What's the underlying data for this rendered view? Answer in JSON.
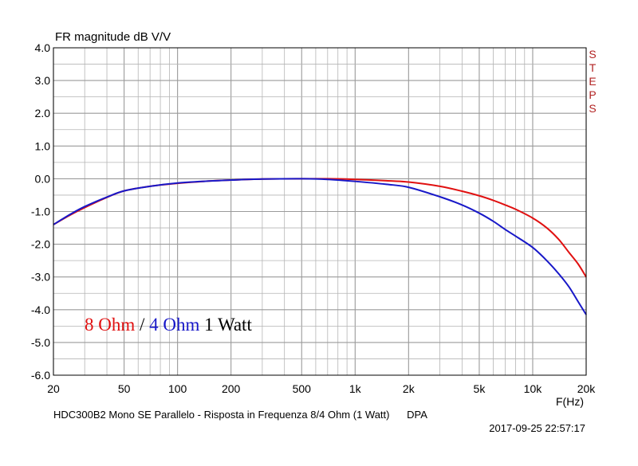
{
  "chart_data": {
    "type": "line",
    "title": "FR magnitude dB V/V",
    "xlabel": "F(Hz)",
    "ylabel": "",
    "xscale": "log",
    "xlim": [
      20,
      20000
    ],
    "ylim": [
      -6,
      4
    ],
    "grid": true,
    "yticks": [
      "4.0",
      "3.0",
      "2.0",
      "1.0",
      "0.0",
      "-1.0",
      "-2.0",
      "-3.0",
      "-4.0",
      "-5.0",
      "-6.0"
    ],
    "xticks": [
      {
        "value": 20,
        "label": "20"
      },
      {
        "value": 50,
        "label": "50"
      },
      {
        "value": 100,
        "label": "100"
      },
      {
        "value": 200,
        "label": "200"
      },
      {
        "value": 500,
        "label": "500"
      },
      {
        "value": 1000,
        "label": "1k"
      },
      {
        "value": 2000,
        "label": "2k"
      },
      {
        "value": 5000,
        "label": "5k"
      },
      {
        "value": 10000,
        "label": "10k"
      },
      {
        "value": 20000,
        "label": "20k"
      }
    ],
    "series": [
      {
        "name": "8 Ohm",
        "color": "#e01010",
        "x": [
          20,
          25,
          30,
          40,
          50,
          70,
          100,
          150,
          200,
          300,
          500,
          700,
          1000,
          1500,
          2000,
          3000,
          4000,
          5000,
          6000,
          7000,
          8000,
          10000,
          12000,
          14000,
          16000,
          18000,
          20000
        ],
        "y": [
          -1.4,
          -1.1,
          -0.88,
          -0.57,
          -0.37,
          -0.23,
          -0.14,
          -0.07,
          -0.04,
          -0.01,
          0.0,
          0.0,
          -0.02,
          -0.06,
          -0.1,
          -0.23,
          -0.38,
          -0.52,
          -0.66,
          -0.8,
          -0.93,
          -1.2,
          -1.5,
          -1.85,
          -2.25,
          -2.6,
          -3.0
        ]
      },
      {
        "name": "4 Ohm",
        "color": "#1818c8",
        "x": [
          20,
          25,
          30,
          40,
          50,
          70,
          100,
          150,
          200,
          300,
          500,
          700,
          1000,
          1500,
          2000,
          3000,
          4000,
          5000,
          6000,
          7000,
          8000,
          10000,
          12000,
          14000,
          16000,
          18000,
          20000
        ],
        "y": [
          -1.4,
          -1.08,
          -0.85,
          -0.56,
          -0.37,
          -0.23,
          -0.13,
          -0.07,
          -0.04,
          -0.01,
          0.0,
          -0.02,
          -0.08,
          -0.17,
          -0.26,
          -0.55,
          -0.8,
          -1.05,
          -1.3,
          -1.55,
          -1.75,
          -2.1,
          -2.5,
          -2.9,
          -3.3,
          -3.75,
          -4.15
        ]
      }
    ]
  },
  "labels": {
    "steps_letters": [
      "S",
      "T",
      "E",
      "P",
      "S"
    ],
    "annotation_8ohm": "8 Ohm",
    "annotation_sep": "/",
    "annotation_4ohm": "4 Ohm",
    "annotation_watt": "1 Watt",
    "footer_left": "HDC300B2 Mono SE Parallelo - Risposta in Frequenza 8/4 Ohm (1 Watt)      DPA",
    "footer_right": "2017-09-25 22:57:17"
  },
  "colors": {
    "red": "#e01010",
    "blue": "#1818c8",
    "steps": "#b22222",
    "grid": "#b4b4b4"
  }
}
